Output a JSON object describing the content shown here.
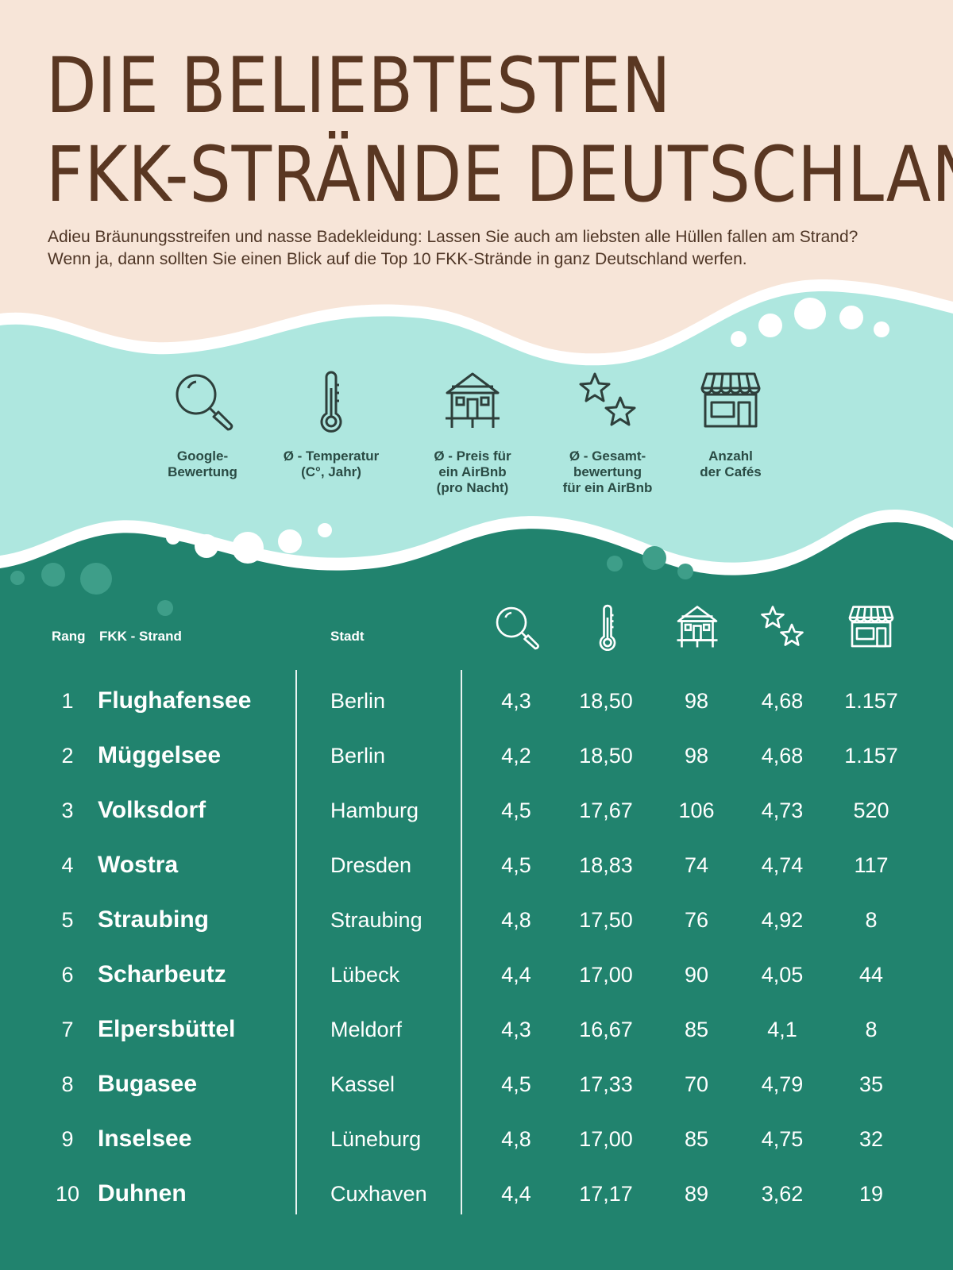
{
  "title": {
    "line1": "DIE BELIEBTESTEN",
    "line2": "FKK-STRÄNDE DEUTSCHLANDS"
  },
  "intro": "Adieu Bräunungsstreifen und nasse Badekleidung: Lassen Sie auch am liebsten alle Hüllen fallen am Strand? Wenn ja, dann sollten Sie einen Blick auf die Top 10 FKK-Strände in ganz Deutschland werfen.",
  "colors": {
    "sand": "#f7e5d8",
    "mint": "#aee7df",
    "teal": "#21836e",
    "brown": "#5a3722",
    "icon_stroke": "#2e3f3b"
  },
  "legend": [
    {
      "icon": "magnifier-icon",
      "label": "Google-\nBewertung"
    },
    {
      "icon": "thermometer-icon",
      "label": "Ø - Temperatur\n(C°, Jahr)"
    },
    {
      "icon": "house-icon",
      "label": "Ø - Preis für\nein AirBnb\n(pro Nacht)"
    },
    {
      "icon": "stars-icon",
      "label": "Ø - Gesamt-\nbewertung\nfür ein AirBnb"
    },
    {
      "icon": "shop-icon",
      "label": "Anzahl\nder Cafés"
    }
  ],
  "table": {
    "headers": {
      "rank": "Rang",
      "beach": "FKK - Strand",
      "city": "Stadt"
    },
    "rows": [
      {
        "rank": "1",
        "beach": "Flughafensee",
        "city": "Berlin",
        "google": "4,3",
        "temp": "18,50",
        "price": "98",
        "stars": "4,68",
        "cafes": "1.157"
      },
      {
        "rank": "2",
        "beach": "Müggelsee",
        "city": "Berlin",
        "google": "4,2",
        "temp": "18,50",
        "price": "98",
        "stars": "4,68",
        "cafes": "1.157"
      },
      {
        "rank": "3",
        "beach": "Volksdorf",
        "city": "Hamburg",
        "google": "4,5",
        "temp": "17,67",
        "price": "106",
        "stars": "4,73",
        "cafes": "520"
      },
      {
        "rank": "4",
        "beach": "Wostra",
        "city": "Dresden",
        "google": "4,5",
        "temp": "18,83",
        "price": "74",
        "stars": "4,74",
        "cafes": "117"
      },
      {
        "rank": "5",
        "beach": "Straubing",
        "city": "Straubing",
        "google": "4,8",
        "temp": "17,50",
        "price": "76",
        "stars": "4,92",
        "cafes": "8"
      },
      {
        "rank": "6",
        "beach": "Scharbeutz",
        "city": "Lübeck",
        "google": "4,4",
        "temp": "17,00",
        "price": "90",
        "stars": "4,05",
        "cafes": "44"
      },
      {
        "rank": "7",
        "beach": "Elpersbüttel",
        "city": "Meldorf",
        "google": "4,3",
        "temp": "16,67",
        "price": "85",
        "stars": "4,1",
        "cafes": "8"
      },
      {
        "rank": "8",
        "beach": "Bugasee",
        "city": "Kassel",
        "google": "4,5",
        "temp": "17,33",
        "price": "70",
        "stars": "4,79",
        "cafes": "35"
      },
      {
        "rank": "9",
        "beach": "Inselsee",
        "city": "Lüneburg",
        "google": "4,8",
        "temp": "17,00",
        "price": "85",
        "stars": "4,75",
        "cafes": "32"
      },
      {
        "rank": "10",
        "beach": "Duhnen",
        "city": "Cuxhaven",
        "google": "4,4",
        "temp": "17,17",
        "price": "89",
        "stars": "3,62",
        "cafes": "19"
      }
    ]
  }
}
